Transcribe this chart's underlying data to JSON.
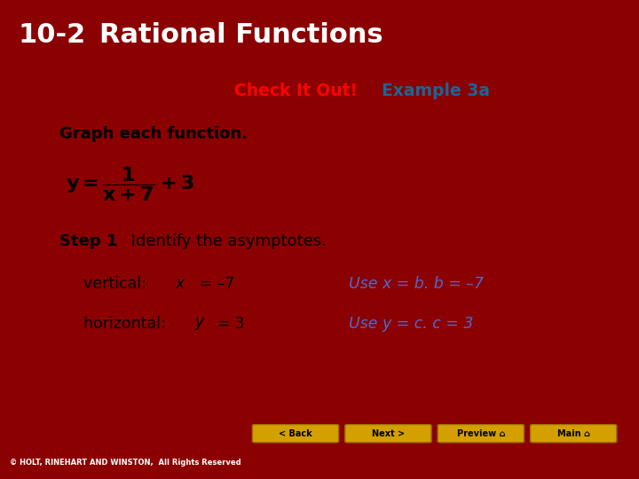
{
  "title_number": "10-2",
  "title_text": "Rational Functions",
  "header_bg": "#3D0000",
  "header_text_color": "#FFFFFF",
  "main_bg": "#8B0000",
  "content_bg": "#FFFFFF",
  "check_it_out_color": "#FF0000",
  "example_color": "#1a6699",
  "check_it_out_text": "Check It Out! ",
  "example_text": "Example 3a",
  "graph_instruction": "Graph each function.",
  "step_bold": "Step 1",
  "step_text": " Identify the asymptotes.",
  "vertical_text": "vertical:  x = –7",
  "horizontal_text": "horizontal:  y = 3",
  "use_vertical": "Use x = b. b = –7",
  "use_horizontal": "Use y = c. c = 3",
  "use_color": "#5566CC",
  "footer_text": "© HOLT, RINEHART AND WINSTON,  All Rights Reserved",
  "footer_bg": "#111111",
  "button_bg": "#D4A000",
  "buttons": [
    "< Back",
    "Next >",
    "Preview ⌂",
    "Main ⌂"
  ]
}
